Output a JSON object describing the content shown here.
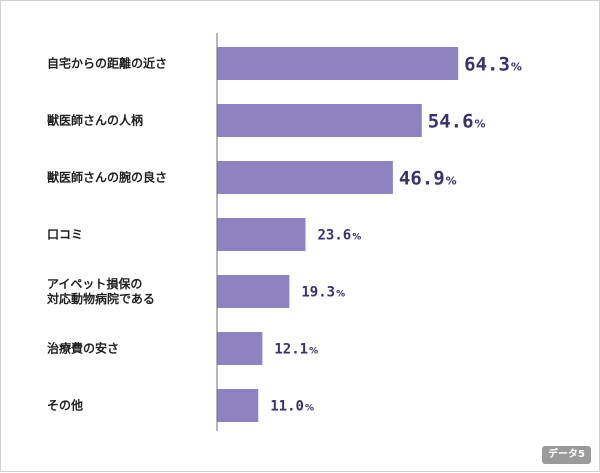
{
  "badge": "データ5",
  "chart_data": {
    "type": "bar",
    "orientation": "horizontal",
    "categories": [
      [
        "自宅からの距離の近さ"
      ],
      [
        "獣医師さんの人柄"
      ],
      [
        "獣医師さんの腕の良さ"
      ],
      [
        "口コミ"
      ],
      [
        "アイペット損保の",
        "対応動物病院である"
      ],
      [
        "治療費の安さ"
      ],
      [
        "その他"
      ]
    ],
    "values": [
      64.3,
      54.6,
      46.9,
      23.6,
      19.3,
      12.1,
      11.0
    ],
    "value_labels": [
      "64.3",
      "54.6",
      "46.9",
      "23.6",
      "19.3",
      "12.1",
      "11.0"
    ],
    "unit": "%",
    "xlim": [
      0,
      100
    ],
    "bar_color": "#8e83c0",
    "label_color": "#3b2f6e",
    "grid": false,
    "legend": "none"
  }
}
